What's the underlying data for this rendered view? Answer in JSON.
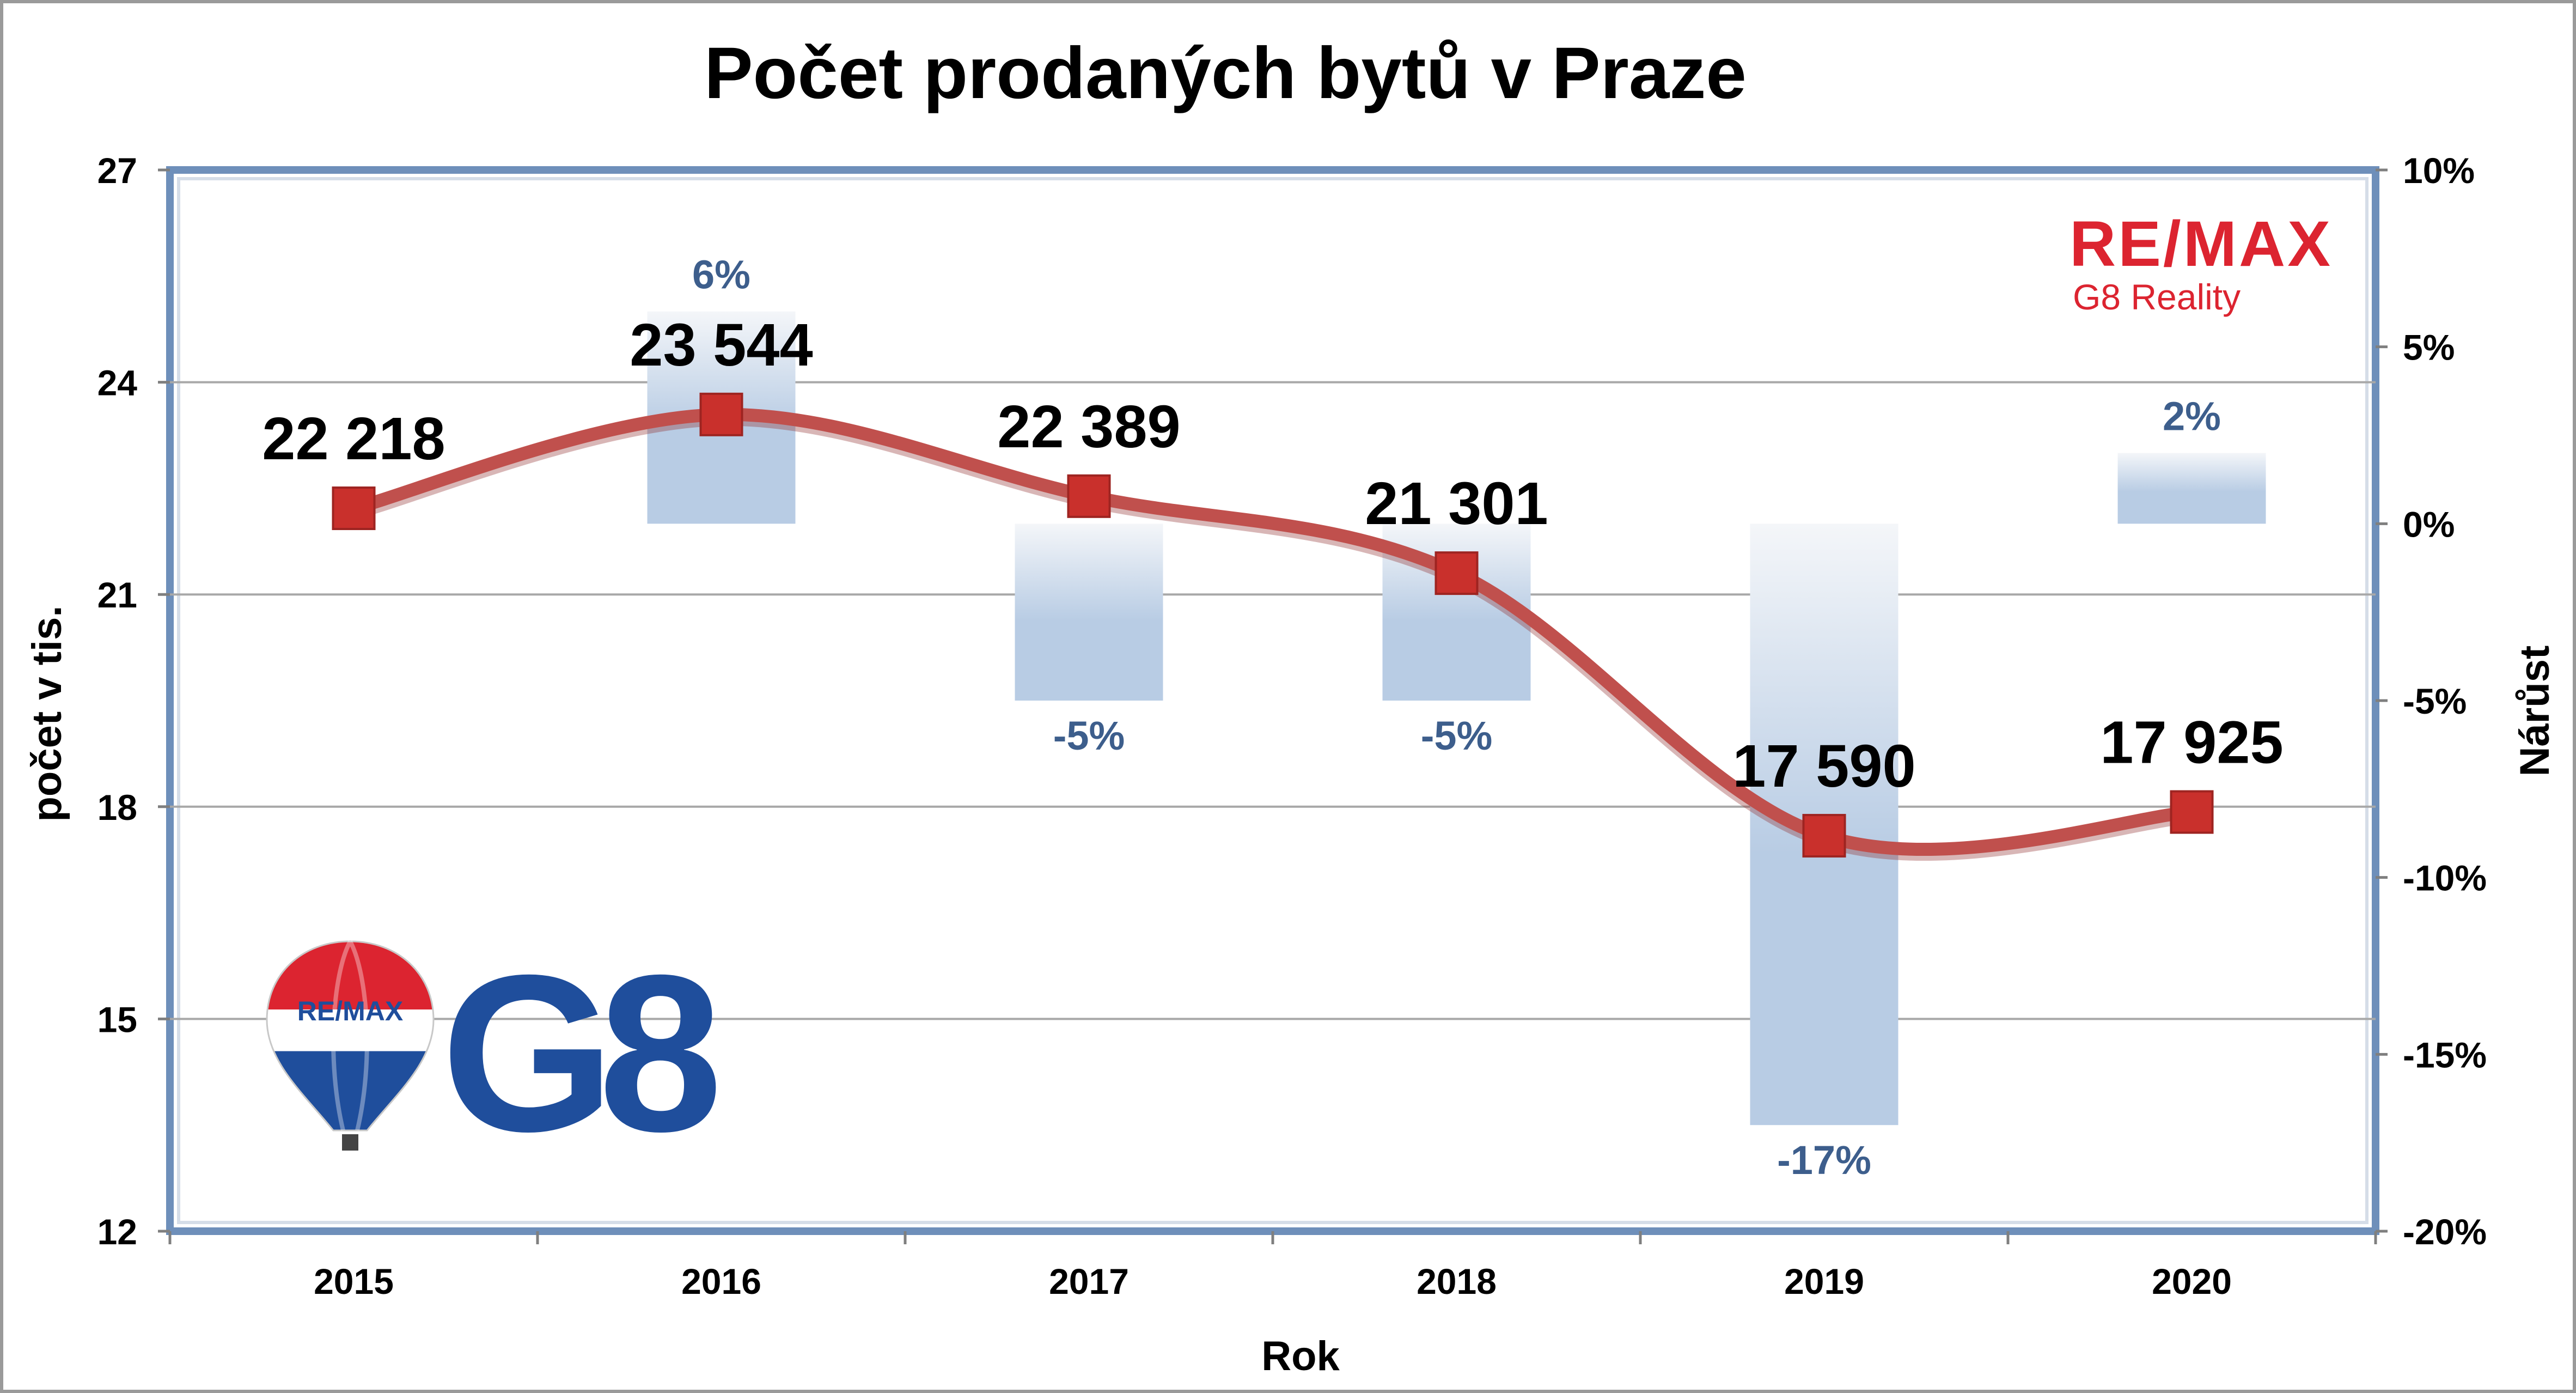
{
  "chart_data": {
    "type": "line",
    "title": "Počet prodaných bytů v Praze",
    "xlabel": "Rok",
    "ylabel": "počet v tis.",
    "y2label": "Nárůst",
    "categories": [
      "2015",
      "2016",
      "2017",
      "2018",
      "2019",
      "2020"
    ],
    "ylim": [
      12,
      27
    ],
    "yticks": [
      "12",
      "15",
      "18",
      "21",
      "24",
      "27"
    ],
    "y2lim": [
      -20,
      10
    ],
    "y2ticks": [
      "-20%",
      "-15%",
      "-10%",
      "-5%",
      "0%",
      "5%",
      "10%"
    ],
    "grid": true,
    "series": [
      {
        "kind": "line",
        "axis": "left",
        "values": [
          22.218,
          23.544,
          22.389,
          21.301,
          17.59,
          17.925
        ],
        "labels": [
          "22 218",
          "23 544",
          "22 389",
          "21 301",
          "17 590",
          "17 925"
        ],
        "color": "#c0504d"
      },
      {
        "kind": "bar",
        "axis": "right",
        "values": [
          null,
          6,
          -5,
          -5,
          -17,
          2
        ],
        "labels": [
          "",
          "6%",
          "-5%",
          "-5%",
          "-17%",
          "2%"
        ],
        "color": "#b8cce4",
        "label_color": "#3d5e8c"
      }
    ]
  },
  "logos": {
    "top_right": {
      "brand": "RE/MAX",
      "subtitle": "G8 Reality",
      "color": "#dc2430"
    },
    "bottom_left": {
      "balloon_text": "RE/MAX",
      "brand": "G8",
      "color": "#1f4e9c"
    }
  }
}
